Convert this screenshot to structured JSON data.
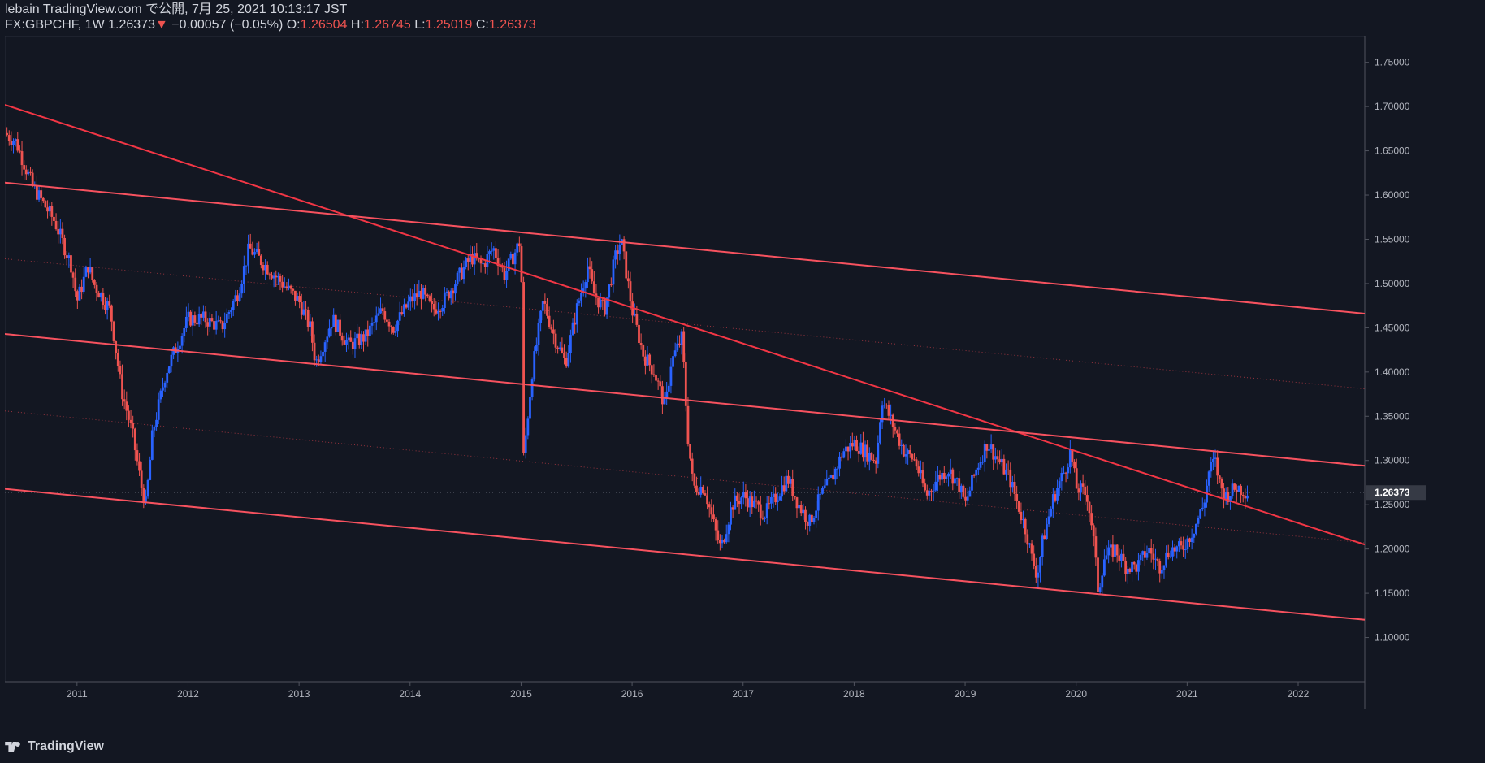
{
  "header": {
    "publisher_line": "lebain TradingView.com で公開, 7月 25, 2021 10:13:17 JST",
    "symbol": "FX:GBPCHF, 1W",
    "last": "1.26373",
    "change_arrow": "▼",
    "change": "−0.00057 (−0.05%)",
    "open_label": "O:",
    "open": "1.26504",
    "high_label": "H:",
    "high": "1.26745",
    "low_label": "L:",
    "low": "1.25019",
    "close_label": "C:",
    "close": "1.26373"
  },
  "footer": {
    "brand": "TradingView"
  },
  "colors": {
    "background": "#131722",
    "up": "#2962ff",
    "down": "#ef5350",
    "trendline": "#f23645",
    "channel": "#f7525f",
    "axis_text": "#b2b5be",
    "price_label_bg": "#363a45"
  },
  "chart_data": {
    "type": "candlestick",
    "symbol": "GBPCHF",
    "interval": "1W",
    "x_ticks": [
      "2011",
      "2012",
      "2013",
      "2014",
      "2015",
      "2016",
      "2017",
      "2018",
      "2019",
      "2020",
      "2021",
      "2022"
    ],
    "y_ticks": [
      "1.10000",
      "1.15000",
      "1.20000",
      "1.25000",
      "1.30000",
      "1.35000",
      "1.40000",
      "1.45000",
      "1.50000",
      "1.55000",
      "1.60000",
      "1.65000",
      "1.70000",
      "1.75000"
    ],
    "ylim": [
      1.05,
      1.78
    ],
    "xlim": [
      2010.35,
      2022.6
    ],
    "current_price_label": "1.26373",
    "current_price": 1.26373,
    "close_path": [
      [
        2010.35,
        1.67
      ],
      [
        2010.45,
        1.66
      ],
      [
        2010.6,
        1.61
      ],
      [
        2010.8,
        1.57
      ],
      [
        2010.95,
        1.52
      ],
      [
        2011.0,
        1.48
      ],
      [
        2011.1,
        1.52
      ],
      [
        2011.15,
        1.5
      ],
      [
        2011.3,
        1.47
      ],
      [
        2011.4,
        1.38
      ],
      [
        2011.5,
        1.33
      ],
      [
        2011.58,
        1.27
      ],
      [
        2011.62,
        1.25
      ],
      [
        2011.68,
        1.33
      ],
      [
        2011.8,
        1.4
      ],
      [
        2011.9,
        1.43
      ],
      [
        2012.0,
        1.46
      ],
      [
        2012.15,
        1.46
      ],
      [
        2012.3,
        1.45
      ],
      [
        2012.45,
        1.49
      ],
      [
        2012.55,
        1.54
      ],
      [
        2012.7,
        1.52
      ],
      [
        2012.85,
        1.5
      ],
      [
        2013.0,
        1.48
      ],
      [
        2013.1,
        1.45
      ],
      [
        2013.15,
        1.41
      ],
      [
        2013.3,
        1.46
      ],
      [
        2013.45,
        1.43
      ],
      [
        2013.6,
        1.44
      ],
      [
        2013.75,
        1.47
      ],
      [
        2013.85,
        1.45
      ],
      [
        2014.0,
        1.48
      ],
      [
        2014.1,
        1.49
      ],
      [
        2014.2,
        1.47
      ],
      [
        2014.3,
        1.48
      ],
      [
        2014.45,
        1.51
      ],
      [
        2014.55,
        1.53
      ],
      [
        2014.65,
        1.52
      ],
      [
        2014.75,
        1.54
      ],
      [
        2014.85,
        1.51
      ],
      [
        2015.0,
        1.55
      ],
      [
        2015.02,
        1.3
      ],
      [
        2015.1,
        1.4
      ],
      [
        2015.2,
        1.48
      ],
      [
        2015.3,
        1.44
      ],
      [
        2015.4,
        1.41
      ],
      [
        2015.5,
        1.47
      ],
      [
        2015.6,
        1.52
      ],
      [
        2015.65,
        1.49
      ],
      [
        2015.75,
        1.47
      ],
      [
        2015.85,
        1.53
      ],
      [
        2015.9,
        1.55
      ],
      [
        2016.0,
        1.47
      ],
      [
        2016.1,
        1.42
      ],
      [
        2016.2,
        1.4
      ],
      [
        2016.3,
        1.36
      ],
      [
        2016.35,
        1.41
      ],
      [
        2016.45,
        1.44
      ],
      [
        2016.5,
        1.33
      ],
      [
        2016.55,
        1.27
      ],
      [
        2016.65,
        1.27
      ],
      [
        2016.75,
        1.22
      ],
      [
        2016.8,
        1.2
      ],
      [
        2016.9,
        1.25
      ],
      [
        2017.0,
        1.26
      ],
      [
        2017.1,
        1.25
      ],
      [
        2017.2,
        1.24
      ],
      [
        2017.3,
        1.26
      ],
      [
        2017.4,
        1.28
      ],
      [
        2017.5,
        1.25
      ],
      [
        2017.6,
        1.23
      ],
      [
        2017.7,
        1.26
      ],
      [
        2017.8,
        1.28
      ],
      [
        2017.9,
        1.31
      ],
      [
        2018.0,
        1.32
      ],
      [
        2018.1,
        1.31
      ],
      [
        2018.2,
        1.3
      ],
      [
        2018.25,
        1.37
      ],
      [
        2018.35,
        1.34
      ],
      [
        2018.45,
        1.31
      ],
      [
        2018.55,
        1.3
      ],
      [
        2018.65,
        1.26
      ],
      [
        2018.75,
        1.28
      ],
      [
        2018.85,
        1.29
      ],
      [
        2018.95,
        1.27
      ],
      [
        2019.0,
        1.25
      ],
      [
        2019.1,
        1.29
      ],
      [
        2019.2,
        1.32
      ],
      [
        2019.3,
        1.3
      ],
      [
        2019.4,
        1.28
      ],
      [
        2019.5,
        1.24
      ],
      [
        2019.55,
        1.22
      ],
      [
        2019.6,
        1.19
      ],
      [
        2019.65,
        1.17
      ],
      [
        2019.7,
        1.21
      ],
      [
        2019.8,
        1.26
      ],
      [
        2019.9,
        1.29
      ],
      [
        2019.95,
        1.31
      ],
      [
        2020.0,
        1.27
      ],
      [
        2020.1,
        1.26
      ],
      [
        2020.15,
        1.22
      ],
      [
        2020.2,
        1.15
      ],
      [
        2020.25,
        1.19
      ],
      [
        2020.35,
        1.2
      ],
      [
        2020.45,
        1.18
      ],
      [
        2020.55,
        1.18
      ],
      [
        2020.65,
        1.2
      ],
      [
        2020.75,
        1.18
      ],
      [
        2020.85,
        1.2
      ],
      [
        2020.95,
        1.2
      ],
      [
        2021.05,
        1.22
      ],
      [
        2021.15,
        1.25
      ],
      [
        2021.2,
        1.29
      ],
      [
        2021.25,
        1.3
      ],
      [
        2021.3,
        1.27
      ],
      [
        2021.35,
        1.26
      ],
      [
        2021.45,
        1.27
      ],
      [
        2021.55,
        1.26373
      ]
    ],
    "trendlines": [
      {
        "name": "major-downtrend",
        "from": [
          2010.35,
          1.702
        ],
        "to": [
          2022.6,
          1.205
        ]
      },
      {
        "name": "channel-top",
        "from": [
          2010.35,
          1.614
        ],
        "to": [
          2022.6,
          1.466
        ]
      },
      {
        "name": "channel-mid",
        "from": [
          2010.35,
          1.443
        ],
        "to": [
          2022.6,
          1.294
        ]
      },
      {
        "name": "channel-bottom",
        "from": [
          2010.35,
          1.268
        ],
        "to": [
          2022.6,
          1.12
        ]
      }
    ],
    "dotted_lines": [
      {
        "from": [
          2010.35,
          1.528
        ],
        "to": [
          2022.6,
          1.381
        ]
      },
      {
        "from": [
          2010.35,
          1.356
        ],
        "to": [
          2022.6,
          1.207
        ]
      }
    ]
  }
}
